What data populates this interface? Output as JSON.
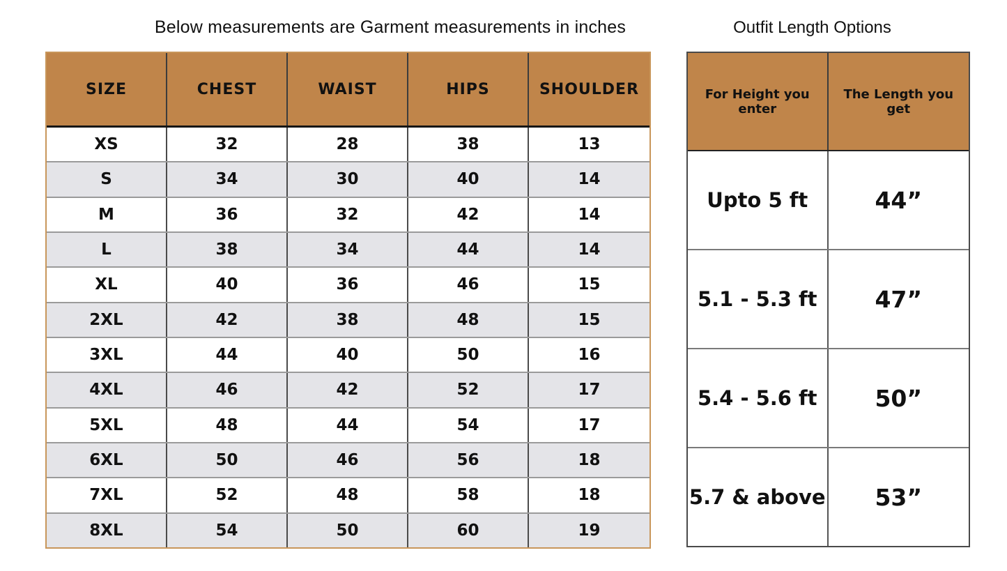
{
  "left": {
    "title": "Below measurements are Garment measurements in inches",
    "headers": [
      "SIZE",
      "CHEST",
      "WAIST",
      "HIPS",
      "SHOULDER"
    ],
    "rows": [
      [
        "XS",
        "32",
        "28",
        "38",
        "13"
      ],
      [
        "S",
        "34",
        "30",
        "40",
        "14"
      ],
      [
        "M",
        "36",
        "32",
        "42",
        "14"
      ],
      [
        "L",
        "38",
        "34",
        "44",
        "14"
      ],
      [
        "XL",
        "40",
        "36",
        "46",
        "15"
      ],
      [
        "2XL",
        "42",
        "38",
        "48",
        "15"
      ],
      [
        "3XL",
        "44",
        "40",
        "50",
        "16"
      ],
      [
        "4XL",
        "46",
        "42",
        "52",
        "17"
      ],
      [
        "5XL",
        "48",
        "44",
        "54",
        "17"
      ],
      [
        "6XL",
        "50",
        "46",
        "56",
        "18"
      ],
      [
        "7XL",
        "52",
        "48",
        "58",
        "18"
      ],
      [
        "8XL",
        "54",
        "50",
        "60",
        "19"
      ]
    ]
  },
  "right": {
    "title": "Outfit Length Options",
    "headers": [
      "For Height you enter",
      "The Length you get"
    ],
    "rows": [
      [
        "Upto 5 ft",
        "44”"
      ],
      [
        "5.1 - 5.3 ft",
        "47”"
      ],
      [
        "5.4 - 5.6 ft",
        "50”"
      ],
      [
        "5.7 & above",
        "53”"
      ]
    ]
  },
  "colors": {
    "header_bg": "#c0854a",
    "alt_row_bg": "#e4e4e8",
    "left_outer_border": "#c8965a",
    "right_outer_border": "#4a4a4a"
  }
}
